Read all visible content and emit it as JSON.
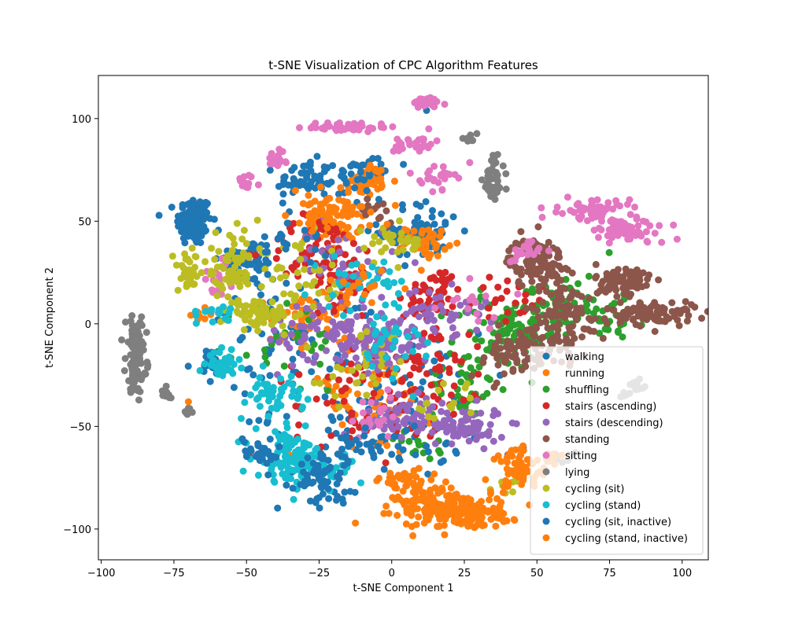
{
  "chart_data": {
    "type": "scatter",
    "title": "t-SNE Visualization of CPC Algorithm Features",
    "xlabel": "t-SNE Component 1",
    "ylabel": "t-SNE Component 2",
    "xlim": [
      -101,
      109
    ],
    "ylim": [
      -115,
      121
    ],
    "xticks": [
      -100,
      -75,
      -50,
      -25,
      0,
      25,
      50,
      75,
      100
    ],
    "yticks": [
      -100,
      -50,
      0,
      50,
      100
    ],
    "grid": false,
    "legend_position": "lower-right",
    "series": [
      {
        "name": "walking",
        "color": "#1f77b4",
        "clusters": [
          [
            -68,
            50,
            5,
            10,
            120
          ],
          [
            -50,
            30,
            8,
            10,
            60
          ],
          [
            -30,
            70,
            8,
            8,
            50
          ],
          [
            -8,
            75,
            4,
            4,
            30
          ],
          [
            10,
            45,
            12,
            12,
            70
          ],
          [
            -5,
            -40,
            30,
            30,
            100
          ],
          [
            -35,
            -10,
            25,
            25,
            60
          ],
          [
            12,
            104,
            1,
            1,
            1
          ],
          [
            -62,
            -20,
            3,
            8,
            20
          ]
        ]
      },
      {
        "name": "running",
        "color": "#ff7f0e",
        "clusters": [
          [
            -20,
            50,
            8,
            8,
            60
          ],
          [
            -8,
            70,
            5,
            6,
            50
          ],
          [
            12,
            40,
            6,
            6,
            40
          ],
          [
            -30,
            0,
            10,
            15,
            40
          ],
          [
            -10,
            -35,
            20,
            25,
            60
          ],
          [
            -65,
            5,
            3,
            3,
            10
          ],
          [
            -70,
            -38,
            1,
            1,
            1
          ]
        ]
      },
      {
        "name": "shuffling",
        "color": "#2ca02c",
        "clusters": [
          [
            40,
            -5,
            15,
            15,
            90
          ],
          [
            60,
            10,
            15,
            12,
            60
          ],
          [
            25,
            -30,
            10,
            15,
            40
          ],
          [
            75,
            0,
            8,
            6,
            20
          ],
          [
            -35,
            -10,
            15,
            20,
            30
          ],
          [
            10,
            -60,
            8,
            6,
            15
          ]
        ]
      },
      {
        "name": "stairs (ascending)",
        "color": "#d62728",
        "clusters": [
          [
            -25,
            35,
            15,
            15,
            80
          ],
          [
            15,
            15,
            8,
            10,
            50
          ],
          [
            10,
            -20,
            20,
            25,
            80
          ],
          [
            -10,
            -40,
            20,
            20,
            50
          ],
          [
            -15,
            20,
            10,
            10,
            30
          ],
          [
            40,
            10,
            10,
            10,
            20
          ]
        ]
      },
      {
        "name": "stairs (descending)",
        "color": "#9467bd",
        "clusters": [
          [
            -5,
            -10,
            12,
            10,
            100
          ],
          [
            25,
            -50,
            12,
            8,
            70
          ],
          [
            5,
            -45,
            12,
            8,
            60
          ],
          [
            -25,
            -5,
            15,
            15,
            60
          ],
          [
            -15,
            30,
            15,
            15,
            40
          ],
          [
            15,
            5,
            15,
            10,
            50
          ]
        ]
      },
      {
        "name": "standing",
        "color": "#8c564b",
        "clusters": [
          [
            50,
            30,
            8,
            10,
            110
          ],
          [
            80,
            20,
            8,
            8,
            80
          ],
          [
            90,
            5,
            12,
            5,
            90
          ],
          [
            60,
            5,
            12,
            12,
            80
          ],
          [
            40,
            -15,
            12,
            10,
            50
          ],
          [
            55,
            -10,
            10,
            8,
            40
          ],
          [
            -5,
            55,
            5,
            5,
            15
          ]
        ]
      },
      {
        "name": "sitting",
        "color": "#e377c2",
        "clusters": [
          [
            -15,
            96,
            12,
            2,
            50
          ],
          [
            12,
            108,
            4,
            2,
            40
          ],
          [
            8,
            88,
            6,
            4,
            30
          ],
          [
            16,
            72,
            5,
            5,
            25
          ],
          [
            -40,
            80,
            3,
            3,
            20
          ],
          [
            -50,
            68,
            3,
            4,
            15
          ],
          [
            80,
            46,
            12,
            6,
            70
          ],
          [
            70,
            56,
            10,
            4,
            50
          ],
          [
            45,
            35,
            5,
            5,
            20
          ],
          [
            -60,
            20,
            5,
            10,
            20
          ],
          [
            -5,
            -45,
            10,
            10,
            20
          ],
          [
            30,
            10,
            10,
            10,
            15
          ]
        ]
      },
      {
        "name": "lying",
        "color": "#7f7f7f",
        "clusters": [
          [
            -88,
            -15,
            3,
            15,
            110
          ],
          [
            -78,
            -35,
            2,
            3,
            15
          ],
          [
            -70,
            -43,
            2,
            2,
            8
          ],
          [
            35,
            70,
            3,
            10,
            50
          ],
          [
            27,
            90,
            2,
            2,
            10
          ],
          [
            85,
            -30,
            3,
            2,
            10
          ],
          [
            57,
            -65,
            5,
            2,
            15
          ],
          [
            80,
            -35,
            2,
            2,
            5
          ]
        ]
      },
      {
        "name": "cycling (sit)",
        "color": "#bcbd22",
        "clusters": [
          [
            -55,
            25,
            8,
            15,
            80
          ],
          [
            -45,
            5,
            8,
            5,
            60
          ],
          [
            -70,
            25,
            3,
            8,
            30
          ],
          [
            -30,
            20,
            15,
            15,
            40
          ],
          [
            -10,
            -20,
            12,
            15,
            30
          ],
          [
            0,
            40,
            10,
            8,
            30
          ],
          [
            20,
            -40,
            10,
            10,
            15
          ],
          [
            40,
            -80,
            5,
            5,
            10
          ]
        ]
      },
      {
        "name": "cycling (stand)",
        "color": "#17becf",
        "clusters": [
          [
            -35,
            -65,
            10,
            10,
            110
          ],
          [
            -58,
            -20,
            4,
            5,
            40
          ],
          [
            -40,
            -35,
            8,
            8,
            50
          ],
          [
            -10,
            20,
            12,
            12,
            40
          ],
          [
            0,
            -10,
            12,
            12,
            30
          ],
          [
            -20,
            -70,
            6,
            6,
            25
          ],
          [
            -60,
            5,
            5,
            5,
            15
          ]
        ]
      },
      {
        "name": "cycling (sit, inactive)",
        "color": "#1f77b4",
        "clusters": [
          [
            -25,
            -75,
            10,
            10,
            60
          ],
          [
            -45,
            -62,
            6,
            6,
            30
          ],
          [
            -5,
            -60,
            15,
            10,
            40
          ],
          [
            -15,
            70,
            15,
            8,
            30
          ],
          [
            -35,
            40,
            10,
            10,
            20
          ]
        ]
      },
      {
        "name": "cycling (stand, inactive)",
        "color": "#ff7f0e",
        "clusters": [
          [
            20,
            -90,
            15,
            8,
            180
          ],
          [
            45,
            -70,
            8,
            8,
            60
          ],
          [
            5,
            -78,
            8,
            6,
            40
          ],
          [
            30,
            -95,
            10,
            4,
            40
          ],
          [
            -20,
            55,
            12,
            8,
            50
          ],
          [
            -15,
            15,
            10,
            10,
            20
          ],
          [
            55,
            -65,
            3,
            2,
            10
          ]
        ]
      }
    ]
  }
}
